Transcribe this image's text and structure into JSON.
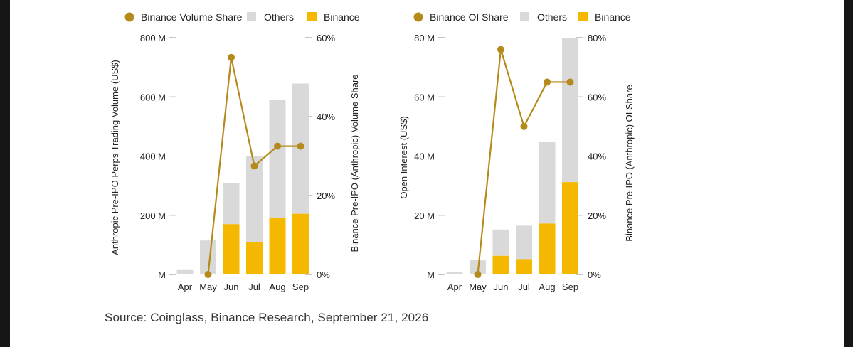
{
  "source_text": "Source: Coinglass, Binance Research, September 21, 2026",
  "colors": {
    "others": "#d9d9d9",
    "binance": "#f5b800",
    "share_line": "#b58a1a",
    "axis_text": "#222222"
  },
  "chart_data": [
    {
      "type": "bar",
      "stacked": true,
      "legend": {
        "share": "Binance Volume Share",
        "others": "Others",
        "binance": "Binance"
      },
      "categories": [
        "Apr",
        "May",
        "Jun",
        "Jul",
        "Aug",
        "Sep"
      ],
      "series": [
        {
          "name": "Binance",
          "values": [
            0,
            0,
            170,
            110,
            190,
            205
          ]
        },
        {
          "name": "Others",
          "values": [
            15,
            115,
            140,
            290,
            400,
            440
          ]
        },
        {
          "name": "Binance Volume Share",
          "axis": "right",
          "values": [
            null,
            0,
            55,
            27.5,
            32.5,
            32.5
          ]
        }
      ],
      "ylabel": "Anthropic Pre-IPO Perps Trading Volume (US$)",
      "ylabel_right": "Binance Pre-IPO (Anthropic) Volume Share",
      "ylim": [
        0,
        800
      ],
      "ylim_right": [
        0,
        60
      ],
      "yticks": [
        {
          "v": 0,
          "label": "M"
        },
        {
          "v": 200,
          "label": "200 M"
        },
        {
          "v": 400,
          "label": "400 M"
        },
        {
          "v": 600,
          "label": "600 M"
        },
        {
          "v": 800,
          "label": "800 M"
        }
      ],
      "yticks_right": [
        {
          "v": 0,
          "label": "0%"
        },
        {
          "v": 20,
          "label": "20%"
        },
        {
          "v": 40,
          "label": "40%"
        },
        {
          "v": 60,
          "label": "60%"
        }
      ],
      "grid": false,
      "legend_position": "top"
    },
    {
      "type": "bar",
      "stacked": true,
      "legend": {
        "share": "Binance OI Share",
        "others": "Others",
        "binance": "Binance"
      },
      "categories": [
        "Apr",
        "May",
        "Jun",
        "Jul",
        "Aug",
        "Sep"
      ],
      "series": [
        {
          "name": "Binance",
          "values": [
            0,
            0,
            6.3,
            5.2,
            17.2,
            31.2
          ]
        },
        {
          "name": "Others",
          "values": [
            0.8,
            4.8,
            8.9,
            11.3,
            27.5,
            48.8
          ]
        },
        {
          "name": "Binance OI Share",
          "axis": "right",
          "values": [
            null,
            0,
            76,
            50,
            65,
            65
          ]
        }
      ],
      "ylabel": "Open Interest (US$)",
      "ylabel_right": "Binance Pre-IPO (Anthropic) OI Share",
      "ylim": [
        0,
        80
      ],
      "ylim_right": [
        0,
        80
      ],
      "yticks": [
        {
          "v": 0,
          "label": "M"
        },
        {
          "v": 20,
          "label": "20 M"
        },
        {
          "v": 40,
          "label": "40 M"
        },
        {
          "v": 60,
          "label": "60 M"
        },
        {
          "v": 80,
          "label": "80 M"
        }
      ],
      "yticks_right": [
        {
          "v": 0,
          "label": "0%"
        },
        {
          "v": 20,
          "label": "20%"
        },
        {
          "v": 40,
          "label": "40%"
        },
        {
          "v": 60,
          "label": "60%"
        },
        {
          "v": 80,
          "label": "80%"
        }
      ],
      "grid": false,
      "legend_position": "top"
    }
  ]
}
